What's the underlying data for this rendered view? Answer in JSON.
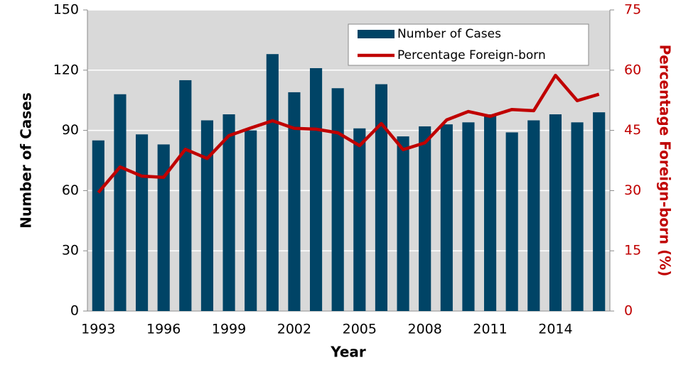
{
  "chart_data": {
    "type": "bar_line",
    "x_label": "Year",
    "y_label": "Number of Cases",
    "y2_label": "Percentage Foreign-born (%)",
    "categories": [
      "1993",
      null,
      null,
      "1996",
      null,
      null,
      "1999",
      null,
      null,
      "2002",
      null,
      null,
      "2005",
      null,
      null,
      "2008",
      null,
      null,
      "2011",
      null,
      null,
      "2014",
      null,
      null
    ],
    "series": [
      {
        "name": "Number of Cases",
        "color": "#004466",
        "type": "bar",
        "values": [
          85,
          108,
          88,
          83,
          115,
          95,
          98,
          90,
          128,
          109,
          121,
          111,
          91,
          113,
          87,
          92,
          93,
          94,
          98,
          89,
          95,
          98,
          94,
          99
        ]
      },
      {
        "name": "Percentage Foreign-born",
        "color": "#c00000",
        "type": "line",
        "axis": "y2",
        "values": [
          29.5,
          35.9,
          33.6,
          33.3,
          40.3,
          38,
          43.7,
          45.6,
          47.4,
          45.5,
          45.3,
          44.4,
          41.2,
          46.7,
          40.2,
          41.9,
          47.6,
          49.7,
          48.5,
          50.2,
          49.9,
          58.7,
          52.4,
          54
        ]
      }
    ],
    "ylim": [
      0,
      150
    ],
    "yticks": [
      0,
      30,
      60,
      90,
      120,
      150
    ],
    "y2lim": [
      0,
      75
    ],
    "y2ticks": [
      0,
      15,
      30,
      45,
      60,
      75
    ],
    "grid": true,
    "legend": "upper right"
  }
}
